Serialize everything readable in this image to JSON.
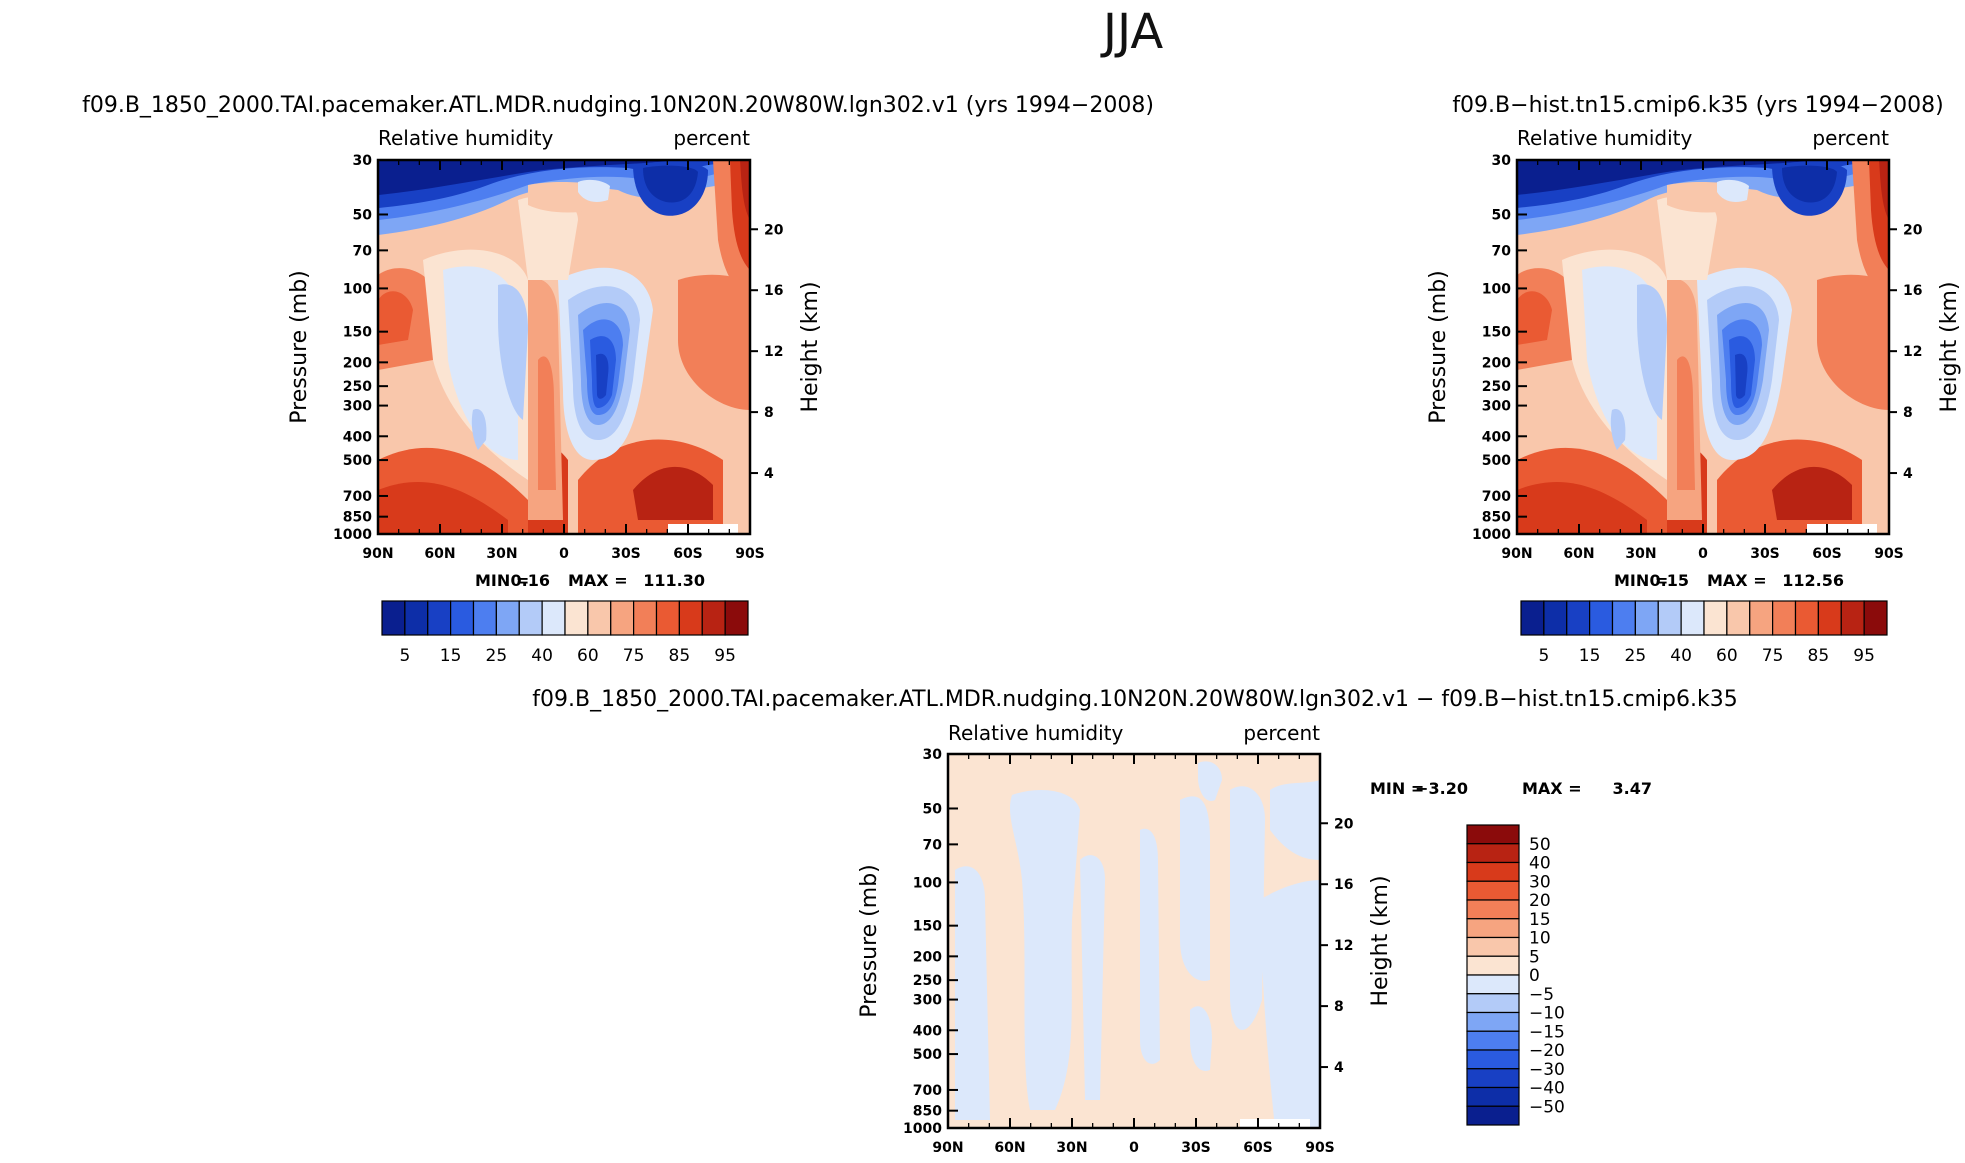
{
  "page_title": "JJA",
  "chart_data": [
    {
      "type": "heatmap",
      "panel": "left",
      "title": "f09.B_1850_2000.TAI.pacemaker.ATL.MDR.nudging.10N20N.20W80W.lgn302.v1 (yrs 1994−2008)",
      "left_label": "Relative humidity",
      "right_label": "percent",
      "ylabel": "Pressure (mb)",
      "ylabel_right": "Height (km)",
      "xticks": [
        "90N",
        "60N",
        "30N",
        "0",
        "30S",
        "60S",
        "90S"
      ],
      "pressure_ticks": [
        "30",
        "50",
        "70",
        "100",
        "150",
        "200",
        "250",
        "300",
        "400",
        "500",
        "700",
        "850",
        "1000"
      ],
      "height_ticks": [
        "20",
        "16",
        "12",
        "8",
        "4"
      ],
      "min_label": "MIN =",
      "min_value": "0.16",
      "max_label": "MAX =",
      "max_value": "111.30",
      "colorbar_labels": [
        "5",
        "15",
        "25",
        "40",
        "60",
        "75",
        "85",
        "95"
      ],
      "colorbar_colors": [
        "#0a1f8f",
        "#0d2ea8",
        "#1840c4",
        "#2a5be0",
        "#4d7ef0",
        "#7ea6f5",
        "#b3cbf8",
        "#dce8fb",
        "#fbe4d2",
        "#f9c7ab",
        "#f6a480",
        "#f27f58",
        "#ea5a33",
        "#d83a1b",
        "#b82313",
        "#8b0b0b"
      ],
      "ylim": [
        1000,
        30
      ]
    },
    {
      "type": "heatmap",
      "panel": "right",
      "title": "f09.B−hist.tn15.cmip6.k35 (yrs 1994−2008)",
      "left_label": "Relative humidity",
      "right_label": "percent",
      "ylabel": "Pressure (mb)",
      "ylabel_right": "Height (km)",
      "xticks": [
        "90N",
        "60N",
        "30N",
        "0",
        "30S",
        "60S",
        "90S"
      ],
      "pressure_ticks": [
        "30",
        "50",
        "70",
        "100",
        "150",
        "200",
        "250",
        "300",
        "400",
        "500",
        "700",
        "850",
        "1000"
      ],
      "height_ticks": [
        "20",
        "16",
        "12",
        "8",
        "4"
      ],
      "min_label": "MIN =",
      "min_value": "0.15",
      "max_label": "MAX =",
      "max_value": "112.56",
      "colorbar_labels": [
        "5",
        "15",
        "25",
        "40",
        "60",
        "75",
        "85",
        "95"
      ],
      "colorbar_colors": [
        "#0a1f8f",
        "#0d2ea8",
        "#1840c4",
        "#2a5be0",
        "#4d7ef0",
        "#7ea6f5",
        "#b3cbf8",
        "#dce8fb",
        "#fbe4d2",
        "#f9c7ab",
        "#f6a480",
        "#f27f58",
        "#ea5a33",
        "#d83a1b",
        "#b82313",
        "#8b0b0b"
      ],
      "ylim": [
        1000,
        30
      ]
    },
    {
      "type": "heatmap",
      "panel": "diff",
      "title": "f09.B_1850_2000.TAI.pacemaker.ATL.MDR.nudging.10N20N.20W80W.lgn302.v1 − f09.B−hist.tn15.cmip6.k35",
      "left_label": "Relative humidity",
      "right_label": "percent",
      "ylabel": "Pressure (mb)",
      "ylabel_right": "Height (km)",
      "xticks": [
        "90N",
        "60N",
        "30N",
        "0",
        "30S",
        "60S",
        "90S"
      ],
      "pressure_ticks": [
        "30",
        "50",
        "70",
        "100",
        "150",
        "200",
        "250",
        "300",
        "400",
        "500",
        "700",
        "850",
        "1000"
      ],
      "height_ticks": [
        "20",
        "16",
        "12",
        "8",
        "4"
      ],
      "min_label": "MIN =",
      "min_value": "−3.20",
      "max_label": "MAX =",
      "max_value": "3.47",
      "colorbar_labels": [
        "50",
        "40",
        "30",
        "20",
        "15",
        "10",
        "5",
        "0",
        "−5",
        "−10",
        "−15",
        "−20",
        "−30",
        "−40",
        "−50"
      ],
      "colorbar_colors": [
        "#8b0b0b",
        "#b82313",
        "#d83a1b",
        "#ea5a33",
        "#f27f58",
        "#f6a480",
        "#f9c7ab",
        "#fbe4d2",
        "#dce8fb",
        "#b3cbf8",
        "#7ea6f5",
        "#4d7ef0",
        "#2a5be0",
        "#1840c4",
        "#0d2ea8",
        "#0a1f8f"
      ],
      "ylim": [
        1000,
        30
      ]
    }
  ]
}
